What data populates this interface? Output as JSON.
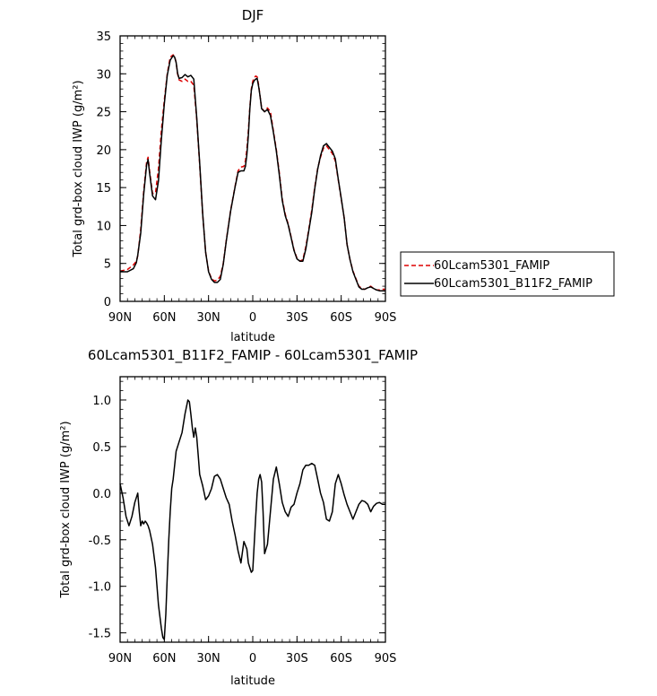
{
  "chart_data": [
    {
      "type": "line",
      "title": "DJF",
      "xlabel": "latitude",
      "ylabel": "Total grd-box cloud IWP (g/m²)",
      "xlim": [
        90,
        -90
      ],
      "ylim": [
        0,
        35
      ],
      "x_ticks": [
        90,
        60,
        30,
        0,
        -30,
        -60,
        -90
      ],
      "x_tick_labels": [
        "90N",
        "60N",
        "30N",
        "0",
        "30S",
        "60S",
        "90S"
      ],
      "y_ticks": [
        0,
        5,
        10,
        15,
        20,
        25,
        30,
        35
      ],
      "y_tick_labels": [
        "0",
        "5",
        "10",
        "15",
        "20",
        "25",
        "30",
        "35"
      ],
      "legend_position": "right",
      "x": [
        90,
        85,
        81,
        79,
        78,
        76,
        74,
        72,
        71,
        70,
        68,
        66,
        64,
        62,
        60,
        58,
        56,
        54,
        53,
        52,
        51,
        50,
        48,
        46,
        44,
        42,
        40,
        38,
        36,
        34,
        32,
        30,
        28,
        26,
        24,
        22,
        20,
        18,
        15,
        12,
        10,
        8,
        6,
        5,
        4,
        3,
        2,
        1,
        0,
        -1,
        -2,
        -3,
        -4,
        -5,
        -6,
        -8,
        -10,
        -12,
        -14,
        -16,
        -18,
        -20,
        -22,
        -24,
        -26,
        -28,
        -30,
        -32,
        -34,
        -36,
        -38,
        -40,
        -42,
        -44,
        -46,
        -48,
        -50,
        -52,
        -54,
        -56,
        -58,
        -60,
        -62,
        -64,
        -66,
        -68,
        -70,
        -72,
        -74,
        -76,
        -78,
        -80,
        -82,
        -84,
        -86,
        -88,
        -90
      ],
      "series": [
        {
          "name": "60Lcam5301_FAMIP",
          "color": "#dd0000",
          "dash": "dashed",
          "values": [
            4.0,
            4.2,
            4.8,
            5.3,
            6.0,
            9.5,
            14.5,
            18.4,
            19.0,
            17.2,
            14.2,
            14.3,
            17.5,
            22.5,
            26.5,
            30.0,
            32.2,
            32.5,
            32.3,
            31.5,
            30.0,
            29.2,
            29.0,
            29.3,
            29.0,
            29.0,
            28.5,
            24.0,
            18.0,
            11.5,
            6.5,
            4.0,
            3.0,
            2.7,
            2.8,
            3.3,
            5.0,
            8.0,
            12.0,
            15.2,
            17.2,
            17.7,
            17.8,
            18.5,
            20.0,
            22.5,
            25.5,
            28.0,
            29.0,
            29.5,
            29.7,
            29.6,
            28.5,
            27.0,
            25.5,
            25.0,
            25.5,
            25.0,
            22.5,
            20.0,
            17.0,
            13.5,
            11.5,
            10.2,
            8.5,
            6.8,
            5.7,
            5.3,
            5.5,
            7.2,
            9.5,
            12.0,
            15.0,
            17.5,
            19.0,
            20.2,
            20.5,
            20.0,
            19.5,
            18.5,
            16.0,
            13.5,
            11.0,
            7.5,
            5.5,
            4.0,
            3.0,
            2.0,
            1.7,
            1.6,
            1.8,
            2.0,
            1.7,
            1.5,
            1.5,
            1.6,
            1.6
          ]
        },
        {
          "name": "60Lcam5301_B11F2_FAMIP",
          "color": "#000000",
          "dash": "solid",
          "values": [
            3.9,
            3.9,
            4.3,
            5.1,
            6.1,
            9.0,
            14.1,
            18.0,
            18.7,
            16.9,
            13.9,
            13.4,
            15.9,
            21.3,
            26.0,
            29.8,
            31.8,
            32.4,
            32.2,
            31.5,
            30.1,
            29.4,
            29.5,
            29.9,
            29.6,
            29.8,
            29.3,
            24.2,
            18.2,
            11.6,
            6.5,
            3.9,
            2.9,
            2.5,
            2.5,
            2.9,
            4.9,
            7.9,
            11.9,
            15.1,
            17.0,
            17.2,
            17.2,
            17.8,
            19.3,
            21.9,
            25.3,
            27.8,
            28.7,
            29.1,
            29.3,
            29.4,
            28.3,
            27.0,
            25.4,
            25.0,
            25.3,
            24.5,
            22.3,
            19.8,
            16.7,
            13.3,
            11.3,
            10.1,
            8.4,
            6.7,
            5.6,
            5.3,
            5.3,
            6.9,
            9.3,
            11.7,
            14.8,
            17.4,
            19.2,
            20.5,
            20.8,
            20.3,
            19.8,
            18.8,
            16.1,
            13.6,
            11.0,
            7.5,
            5.5,
            3.9,
            2.9,
            1.9,
            1.6,
            1.6,
            1.8,
            1.9,
            1.7,
            1.5,
            1.4,
            1.4,
            1.4
          ]
        }
      ]
    },
    {
      "type": "line",
      "title": "60Lcam5301_B11F2_FAMIP - 60Lcam5301_FAMIP",
      "xlabel": "latitude",
      "ylabel": "Total grd-box cloud IWP (g/m²)",
      "xlim": [
        90,
        -90
      ],
      "ylim": [
        -1.6,
        1.25
      ],
      "x_ticks": [
        90,
        60,
        30,
        0,
        -30,
        -60,
        -90
      ],
      "x_tick_labels": [
        "90N",
        "60N",
        "30N",
        "0",
        "30S",
        "60S",
        "90S"
      ],
      "y_ticks": [
        -1.5,
        -1.0,
        -0.5,
        0.0,
        0.5,
        1.0
      ],
      "y_tick_labels": [
        "-1.5",
        "-1.0",
        "-0.5",
        "0.0",
        "0.5",
        "1.0"
      ],
      "x": [
        90,
        88,
        86,
        84,
        82,
        80,
        78,
        77,
        76,
        75,
        74,
        73,
        72,
        71,
        70,
        68,
        66,
        64,
        62,
        61,
        60,
        59,
        58,
        57,
        56,
        55,
        54,
        52,
        50,
        48,
        46,
        44,
        43,
        42,
        41,
        40,
        39,
        38,
        37,
        36,
        34,
        32,
        30,
        28,
        26,
        24,
        22,
        20,
        18,
        16,
        14,
        12,
        10,
        8,
        6,
        5,
        4,
        3,
        2,
        1,
        0,
        -1,
        -2,
        -3,
        -4,
        -5,
        -6,
        -7,
        -8,
        -10,
        -12,
        -14,
        -16,
        -18,
        -20,
        -22,
        -24,
        -26,
        -28,
        -30,
        -32,
        -34,
        -36,
        -38,
        -40,
        -42,
        -44,
        -46,
        -48,
        -50,
        -52,
        -54,
        -56,
        -58,
        -60,
        -62,
        -64,
        -66,
        -68,
        -70,
        -72,
        -74,
        -76,
        -78,
        -80,
        -82,
        -84,
        -86,
        -88,
        -90
      ],
      "series": [
        {
          "name": "",
          "color": "#000000",
          "dash": "solid",
          "values": [
            0.1,
            -0.05,
            -0.25,
            -0.35,
            -0.25,
            -0.1,
            0.0,
            -0.2,
            -0.35,
            -0.3,
            -0.33,
            -0.3,
            -0.32,
            -0.35,
            -0.4,
            -0.55,
            -0.8,
            -1.2,
            -1.45,
            -1.55,
            -1.57,
            -1.3,
            -0.9,
            -0.5,
            -0.2,
            0.05,
            0.15,
            0.45,
            0.55,
            0.65,
            0.85,
            1.0,
            0.98,
            0.85,
            0.7,
            0.6,
            0.7,
            0.6,
            0.4,
            0.2,
            0.08,
            -0.07,
            -0.03,
            0.05,
            0.18,
            0.2,
            0.15,
            0.05,
            -0.05,
            -0.12,
            -0.3,
            -0.45,
            -0.62,
            -0.75,
            -0.52,
            -0.56,
            -0.6,
            -0.75,
            -0.8,
            -0.85,
            -0.83,
            -0.55,
            -0.25,
            0.0,
            0.15,
            0.2,
            0.12,
            -0.2,
            -0.65,
            -0.55,
            -0.2,
            0.15,
            0.28,
            0.1,
            -0.1,
            -0.2,
            -0.25,
            -0.15,
            -0.12,
            0.0,
            0.1,
            0.25,
            0.3,
            0.3,
            0.32,
            0.3,
            0.15,
            0.0,
            -0.1,
            -0.28,
            -0.3,
            -0.2,
            0.1,
            0.2,
            0.1,
            -0.02,
            -0.12,
            -0.2,
            -0.28,
            -0.2,
            -0.12,
            -0.08,
            -0.09,
            -0.12,
            -0.2,
            -0.14,
            -0.11,
            -0.1,
            -0.12,
            -0.12
          ]
        }
      ]
    }
  ]
}
